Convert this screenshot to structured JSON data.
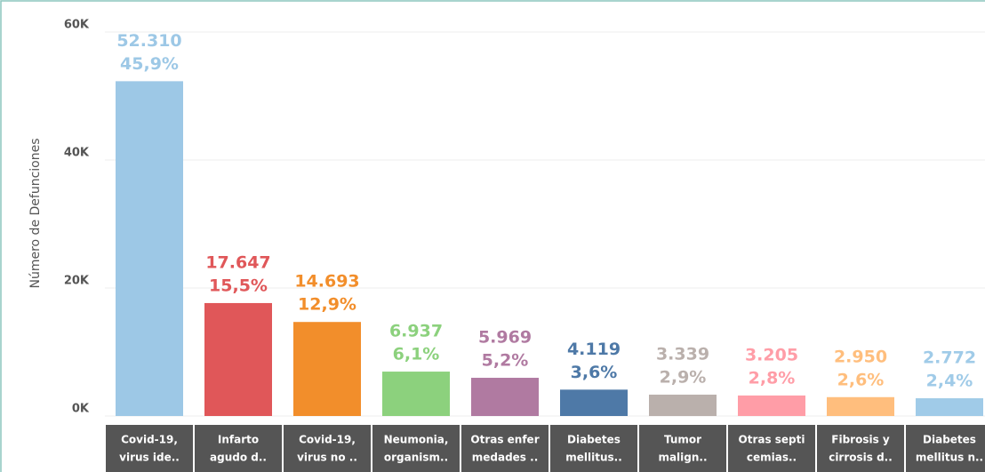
{
  "chart_data": {
    "type": "bar",
    "y_label": "Número de Defunciones",
    "categories": [
      [
        "Covid-19,",
        "virus ide.."
      ],
      [
        "Infarto",
        "agudo d.."
      ],
      [
        "Covid-19,",
        "virus no .."
      ],
      [
        "Neumonia,",
        "organism.."
      ],
      [
        "Otras enfer",
        "medades .."
      ],
      [
        "Diabetes",
        "mellitus.."
      ],
      [
        "Tumor",
        "malign.."
      ],
      [
        "Otras septi",
        "cemias.."
      ],
      [
        "Fibrosis y",
        "cirrosis d.."
      ],
      [
        "Diabetes",
        "mellitus n.."
      ]
    ],
    "values": [
      52310,
      17647,
      14693,
      6937,
      5969,
      4119,
      3339,
      3205,
      2950,
      2772
    ],
    "value_labels": [
      "52.310",
      "17.647",
      "14.693",
      "6.937",
      "5.969",
      "4.119",
      "3.339",
      "3.205",
      "2.950",
      "2.772"
    ],
    "percent_values": [
      45.9,
      15.5,
      12.9,
      6.1,
      5.2,
      3.6,
      2.9,
      2.8,
      2.6,
      2.4
    ],
    "percent_labels": [
      "45,9%",
      "15,5%",
      "12,9%",
      "6,1%",
      "5,2%",
      "3,6%",
      "2,9%",
      "2,8%",
      "2,6%",
      "2,4%"
    ],
    "colors": [
      "#9dc8e6",
      "#e05759",
      "#f28e2b",
      "#8cd17d",
      "#b07aa1",
      "#4e79a7",
      "#bab0ac",
      "#ff9da7",
      "#ffbe7d",
      "#a0cbe8"
    ],
    "ylim": [
      0,
      60000
    ],
    "yticks": [
      {
        "value": 0,
        "label": "0K"
      },
      {
        "value": 20000,
        "label": "20K"
      },
      {
        "value": 40000,
        "label": "40K"
      },
      {
        "value": 60000,
        "label": "60K"
      }
    ],
    "grid": true
  }
}
